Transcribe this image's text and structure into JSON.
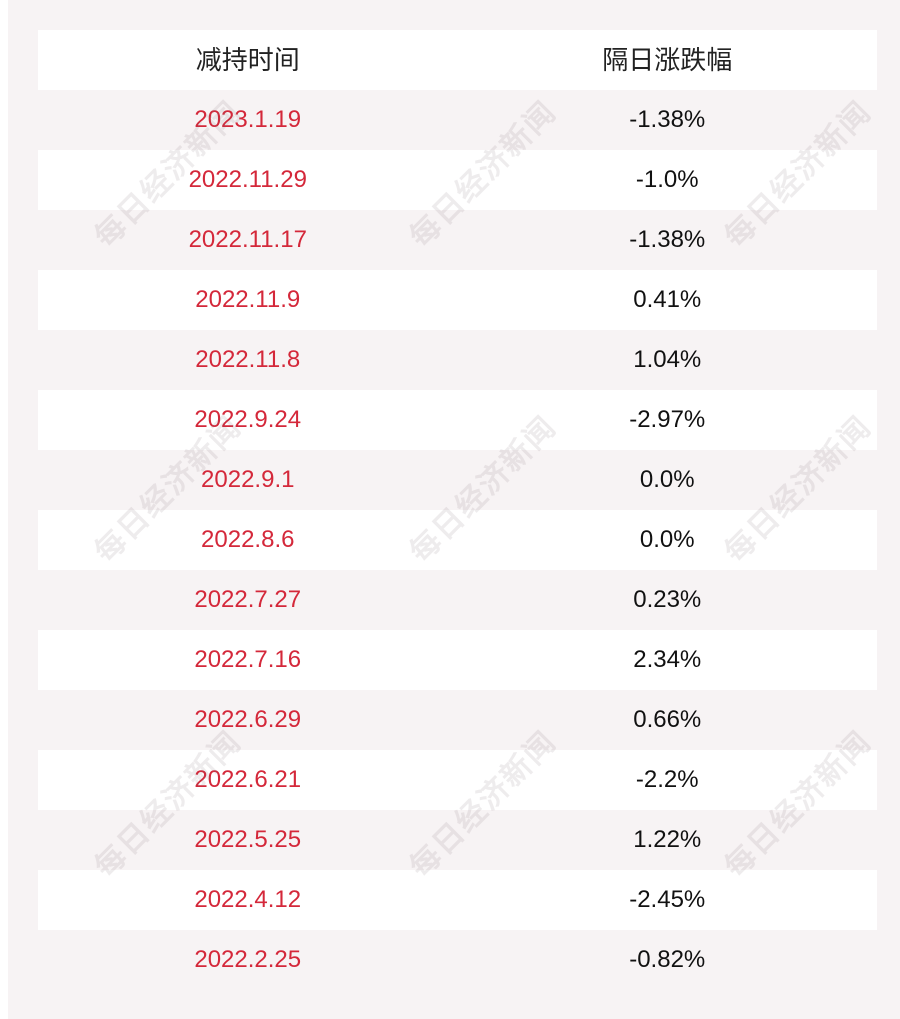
{
  "table": {
    "headers": {
      "date": "减持时间",
      "change": "隔日涨跌幅"
    },
    "rows": [
      {
        "date": "2023.1.19",
        "change": "-1.38%"
      },
      {
        "date": "2022.11.29",
        "change": "-1.0%"
      },
      {
        "date": "2022.11.17",
        "change": "-1.38%"
      },
      {
        "date": "2022.11.9",
        "change": "0.41%"
      },
      {
        "date": "2022.11.8",
        "change": "1.04%"
      },
      {
        "date": "2022.9.24",
        "change": "-2.97%"
      },
      {
        "date": "2022.9.1",
        "change": "0.0%"
      },
      {
        "date": "2022.8.6",
        "change": "0.0%"
      },
      {
        "date": "2022.7.27",
        "change": "0.23%"
      },
      {
        "date": "2022.7.16",
        "change": "2.34%"
      },
      {
        "date": "2022.6.29",
        "change": "0.66%"
      },
      {
        "date": "2022.6.21",
        "change": "-2.2%"
      },
      {
        "date": "2022.5.25",
        "change": "1.22%"
      },
      {
        "date": "2022.4.12",
        "change": "-2.45%"
      },
      {
        "date": "2022.2.25",
        "change": "-0.82%"
      }
    ]
  },
  "watermark": {
    "text": "每日经济新闻"
  },
  "colors": {
    "date_text": "#d4283a",
    "value_text": "#111111",
    "panel_bg": "#f7f3f4",
    "row_bg": "#ffffff"
  }
}
